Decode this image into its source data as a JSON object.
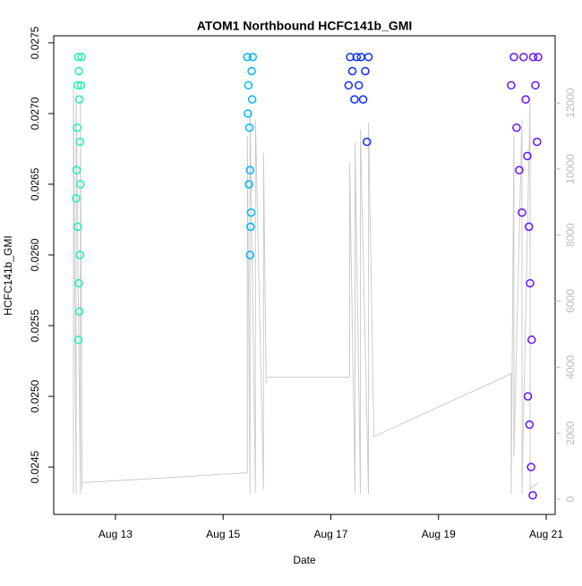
{
  "chart_data": {
    "type": "scatter",
    "title": "ATOM1 Northbound HCFC141b_GMI",
    "x_label": "Date",
    "y_label": "HCFC141b_GMI",
    "xlim": [
      11.854,
      21.166
    ],
    "xticks": [
      {
        "value": 13,
        "label": "Aug 13"
      },
      {
        "value": 15,
        "label": "Aug 15"
      },
      {
        "value": 17,
        "label": "Aug 17"
      },
      {
        "value": 19,
        "label": "Aug 19"
      },
      {
        "value": 21,
        "label": "Aug 21"
      }
    ],
    "ylim": [
      0.024165,
      0.02755
    ],
    "yticks": [
      0.0245,
      {
        "value": 0.025,
        "label": "0.0250"
      },
      0.0255,
      {
        "value": 0.026,
        "label": "0.0260"
      },
      0.0265,
      {
        "value": 0.027,
        "label": "0.0270"
      },
      0.0275
    ],
    "y2lim": [
      -460,
      14035
    ],
    "y2ticks": [
      0,
      2000,
      4000,
      6000,
      8000,
      10000,
      12000
    ],
    "y2_color": "#bbbbbb",
    "series": [
      {
        "color": "#1ef2b2",
        "x": [
          12.27,
          12.28,
          12.29,
          12.3,
          12.31,
          12.32,
          12.33,
          12.34,
          12.35,
          12.36,
          12.37,
          12.3,
          12.32,
          12.33,
          12.31,
          12.34
        ],
        "values": [
          0.0264,
          0.0266,
          0.0269,
          0.0272,
          0.0274,
          0.0273,
          0.0271,
          0.0268,
          0.0265,
          0.0272,
          0.0274,
          0.0262,
          0.0258,
          0.0256,
          0.0254,
          0.026
        ]
      },
      {
        "color": "#00b6ff",
        "x": [
          15.45,
          15.47,
          15.49,
          15.5,
          15.52,
          15.54,
          15.55,
          15.48,
          15.5,
          15.53,
          15.51,
          15.46
        ],
        "values": [
          0.0274,
          0.0272,
          0.0269,
          0.0266,
          0.0263,
          0.0271,
          0.0274,
          0.0265,
          0.026,
          0.0273,
          0.0262,
          0.027
        ]
      },
      {
        "color": "#0c2cff",
        "x": [
          17.33,
          17.36,
          17.4,
          17.44,
          17.48,
          17.52,
          17.56,
          17.6,
          17.64,
          17.67,
          17.7
        ],
        "values": [
          0.0272,
          0.0274,
          0.0273,
          0.0271,
          0.0274,
          0.0272,
          0.0274,
          0.0271,
          0.0273,
          0.0268,
          0.0274
        ]
      },
      {
        "color": "#6510ff",
        "x": [
          20.35,
          20.4,
          20.45,
          20.5,
          20.55,
          20.58,
          20.62,
          20.65,
          20.68,
          20.7,
          20.73,
          20.76,
          20.8,
          20.83,
          20.85,
          20.66,
          20.69,
          20.72,
          20.75
        ],
        "values": [
          0.0272,
          0.0274,
          0.0269,
          0.0266,
          0.0263,
          0.0274,
          0.0271,
          0.0267,
          0.0262,
          0.0258,
          0.0254,
          0.0274,
          0.0272,
          0.0268,
          0.0274,
          0.025,
          0.0248,
          0.0245,
          0.0243
        ]
      },
      {
        "color": "#cccccc",
        "axis": "y2",
        "x": [
          12.22,
          12.22,
          12.27,
          12.27,
          12.35,
          12.35,
          12.38,
          12.38,
          15.45,
          15.45,
          15.5,
          15.5,
          15.6,
          15.6,
          15.75,
          15.75,
          15.8,
          15.8,
          17.35,
          17.35,
          17.45,
          17.45,
          17.55,
          17.55,
          17.7,
          17.7,
          17.8,
          20.35,
          20.35,
          20.4,
          20.4,
          20.55,
          20.55,
          20.7,
          20.7,
          20.85
        ],
        "values": [
          160,
          12500,
          160,
          12300,
          160,
          12200,
          300,
          500,
          800,
          11000,
          160,
          11800,
          200,
          11500,
          300,
          10500,
          3500,
          3700,
          3700,
          10200,
          160,
          10800,
          160,
          11200,
          160,
          11400,
          1900,
          3800,
          160,
          11000,
          1300,
          11500,
          160,
          12000,
          300,
          500
        ]
      }
    ]
  }
}
